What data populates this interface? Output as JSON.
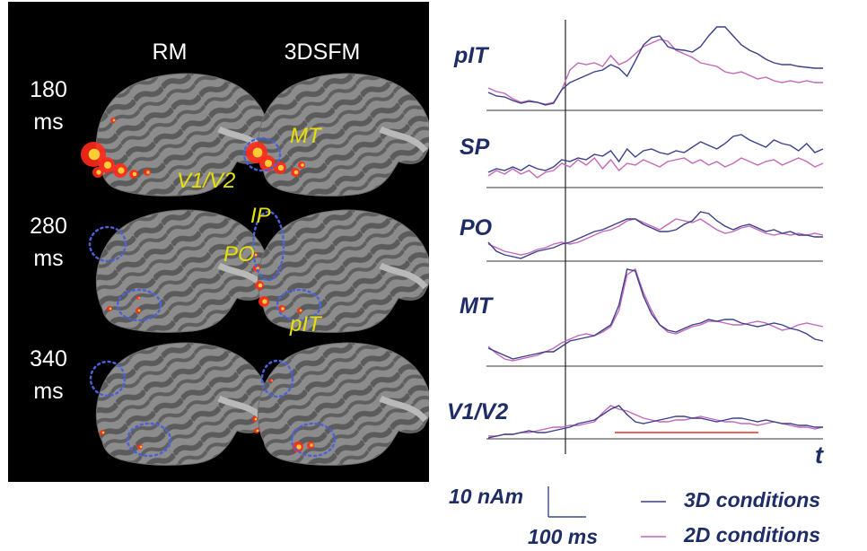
{
  "brain_panel": {
    "columns": [
      "RM",
      "3DSFM"
    ],
    "times": [
      "180\nms",
      "280\nms",
      "340\nms"
    ],
    "roi_labels": {
      "mt": "MT",
      "v1v2": "V1/V2",
      "ip": "IP",
      "po": "PO",
      "pit": "pIT"
    }
  },
  "traces": {
    "panels": [
      {
        "label": "pIT"
      },
      {
        "label": "SP"
      },
      {
        "label": "PO"
      },
      {
        "label": "MT"
      },
      {
        "label": "V1/V2"
      }
    ],
    "time_axis_label": "t",
    "scalebar_amplitude": "10 nAm",
    "scalebar_time": "100 ms"
  },
  "legend": {
    "items": [
      {
        "label": "3D conditions",
        "color": "#3b3f8a"
      },
      {
        "label": "2D conditions",
        "color": "#c467b8"
      }
    ]
  },
  "colors": {
    "activation": "#ff2a1a",
    "roi_circle": "#4a62d8",
    "roi_text": "#e8e000",
    "stimulus_bar": "#f06262"
  }
}
